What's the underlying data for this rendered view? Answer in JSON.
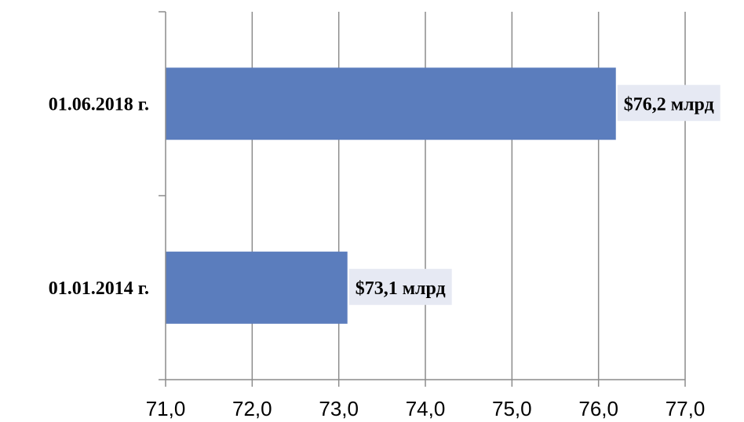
{
  "chart_data": {
    "type": "bar",
    "orientation": "horizontal",
    "categories": [
      "01.06.2018 г.",
      "01.01.2014 г."
    ],
    "values": [
      76.2,
      73.1
    ],
    "data_labels": [
      "$76,2 млрд",
      "$73,1 млрд"
    ],
    "xlim": [
      71.0,
      77.0
    ],
    "x_ticks": [
      "71,0",
      "72,0",
      "73,0",
      "74,0",
      "75,0",
      "76,0",
      "77,0"
    ],
    "grid": "vertical",
    "title": "",
    "xlabel": "",
    "ylabel": "",
    "colors": {
      "bar": "#5b7dbd",
      "label_bg": "#e6e9f3",
      "grid": "#8c8c8c",
      "axis": "#8c8c8c"
    }
  }
}
